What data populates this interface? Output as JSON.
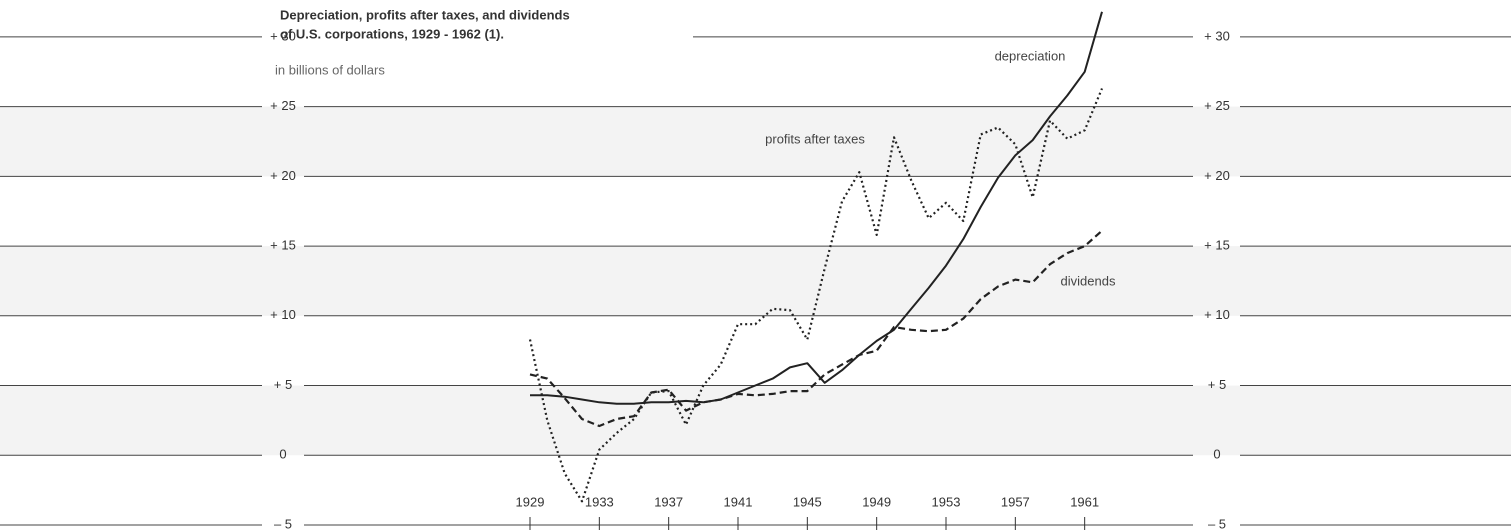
{
  "chart_data": {
    "type": "line",
    "title_lines": [
      "Depreciation, profits after taxes, and dividends",
      "of U.S. corporations, 1929 - 1962 (1)."
    ],
    "subtitle": "in billions of dollars",
    "x": [
      1929,
      1930,
      1931,
      1932,
      1933,
      1934,
      1935,
      1936,
      1937,
      1938,
      1939,
      1940,
      1941,
      1942,
      1943,
      1944,
      1945,
      1946,
      1947,
      1948,
      1949,
      1950,
      1951,
      1952,
      1953,
      1954,
      1955,
      1956,
      1957,
      1958,
      1959,
      1960,
      1961,
      1962
    ],
    "xlim": [
      1929,
      1962
    ],
    "xticks": [
      1929,
      1933,
      1937,
      1941,
      1945,
      1949,
      1953,
      1957,
      1961
    ],
    "ylim": [
      -5,
      32
    ],
    "yticks": [
      {
        "value": -5,
        "label": "– 5"
      },
      0,
      {
        "value": 5,
        "label": "+ 5"
      },
      {
        "value": 10,
        "label": "+ 10"
      },
      {
        "value": 15,
        "label": "+ 15"
      },
      {
        "value": 20,
        "label": "+ 20"
      },
      {
        "value": 25,
        "label": "+ 25"
      },
      {
        "value": 30,
        "label": "+ 30"
      }
    ],
    "grid": true,
    "series": [
      {
        "name": "depreciation",
        "color": "#222222",
        "style": "solid",
        "values": [
          4.3,
          4.3,
          4.2,
          4.0,
          3.8,
          3.7,
          3.7,
          3.8,
          3.8,
          3.9,
          3.8,
          4.0,
          4.5,
          5.0,
          5.5,
          6.3,
          6.6,
          5.2,
          6.1,
          7.2,
          8.2,
          9.0,
          10.5,
          12.0,
          13.6,
          15.5,
          17.8,
          19.9,
          21.5,
          22.6,
          24.3,
          25.8,
          27.5,
          31.8
        ]
      },
      {
        "name": "profits after taxes",
        "color": "#222222",
        "style": "dotted",
        "values": [
          8.3,
          2.5,
          -1.3,
          -3.3,
          0.4,
          1.6,
          2.6,
          4.5,
          4.6,
          2.2,
          5.0,
          6.5,
          9.4,
          9.4,
          10.5,
          10.4,
          8.3,
          13.4,
          18.2,
          20.3,
          15.8,
          22.8,
          19.7,
          17.0,
          18.1,
          16.8,
          23.0,
          23.5,
          22.3,
          18.5,
          24.0,
          22.7,
          23.3,
          26.3
        ]
      },
      {
        "name": "dividends",
        "color": "#222222",
        "style": "dashed",
        "values": [
          5.8,
          5.5,
          4.1,
          2.6,
          2.1,
          2.6,
          2.8,
          4.5,
          4.7,
          3.2,
          3.8,
          4.0,
          4.4,
          4.3,
          4.4,
          4.6,
          4.6,
          5.8,
          6.5,
          7.2,
          7.5,
          9.2,
          9.0,
          8.9,
          9.0,
          9.8,
          11.2,
          12.1,
          12.6,
          12.4,
          13.7,
          14.5,
          15.0,
          16.1
        ]
      }
    ]
  }
}
